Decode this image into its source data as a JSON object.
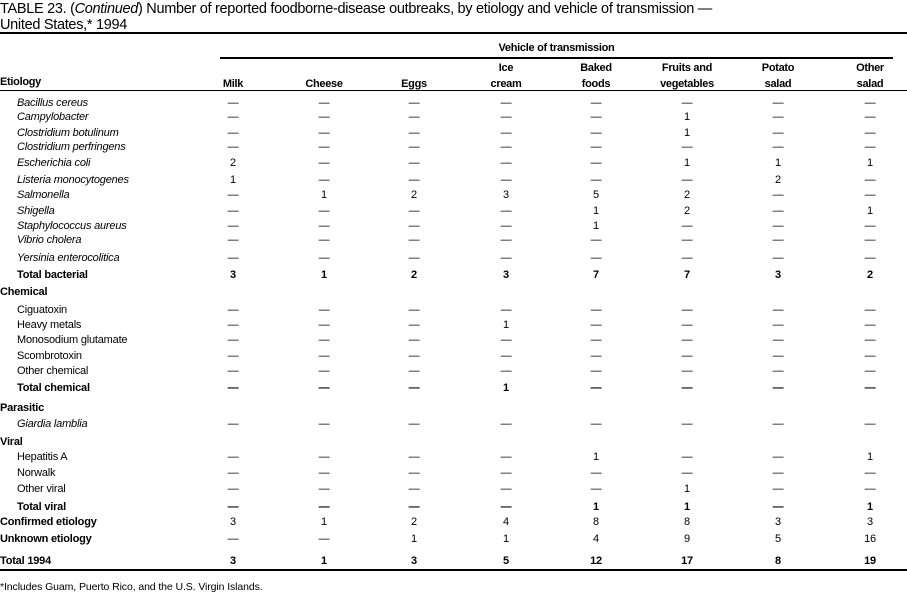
{
  "title": {
    "prefix": "TABLE 23. (",
    "continued": "Continued",
    "text": ") Number of reported foodborne-disease  outbreaks, by etiology and vehicle of transmission —",
    "line2": "United States,* 1994"
  },
  "header": {
    "etiology": "Etiology",
    "group": "Vehicle of transmission",
    "columns": [
      {
        "line1": "",
        "line2": "Milk"
      },
      {
        "line1": "",
        "line2": "Cheese"
      },
      {
        "line1": "",
        "line2": "Eggs"
      },
      {
        "line1": "Ice",
        "line2": "cream"
      },
      {
        "line1": "Baked",
        "line2": "foods"
      },
      {
        "line1": "Fruits and",
        "line2": "vegetables"
      },
      {
        "line1": "Potato",
        "line2": "salad"
      },
      {
        "line1": "Other",
        "line2": "salad"
      }
    ]
  },
  "rows": [
    {
      "type": "organism",
      "label": "Bacillus cereus",
      "values": [
        "—",
        "—",
        "—",
        "—",
        "—",
        "—",
        "—",
        "—"
      ]
    },
    {
      "type": "organism",
      "label": "Campylobacter",
      "values": [
        "—",
        "—",
        "—",
        "—",
        "—",
        "1",
        "—",
        "—"
      ]
    },
    {
      "type": "organism",
      "label": "Clostridium botulinum",
      "values": [
        "—",
        "—",
        "—",
        "—",
        "—",
        "1",
        "—",
        "—"
      ]
    },
    {
      "type": "organism",
      "label": "Clostridium perfringens",
      "values": [
        "—",
        "—",
        "—",
        "—",
        "—",
        "—",
        "—",
        "—"
      ]
    },
    {
      "type": "organism",
      "label": "Escherichia coli",
      "values": [
        "2",
        "—",
        "—",
        "—",
        "—",
        "1",
        "1",
        "1"
      ]
    },
    {
      "type": "organism",
      "label": "Listeria monocytogenes",
      "values": [
        "1",
        "—",
        "—",
        "—",
        "—",
        "—",
        "2",
        "—"
      ]
    },
    {
      "type": "organism",
      "label": "Salmonella",
      "values": [
        "—",
        "1",
        "2",
        "3",
        "5",
        "2",
        "—",
        "—"
      ]
    },
    {
      "type": "organism",
      "label": "Shigella",
      "values": [
        "—",
        "—",
        "—",
        "—",
        "1",
        "2",
        "—",
        "1"
      ]
    },
    {
      "type": "organism",
      "label": "Staphylococcus aureus",
      "values": [
        "—",
        "—",
        "—",
        "—",
        "1",
        "—",
        "—",
        "—"
      ]
    },
    {
      "type": "organism",
      "label": "Vibrio cholera",
      "values": [
        "—",
        "—",
        "—",
        "—",
        "—",
        "—",
        "—",
        "—"
      ]
    },
    {
      "type": "organism",
      "label": "Yersinia enterocolitica",
      "values": [
        "—",
        "—",
        "—",
        "—",
        "—",
        "—",
        "—",
        "—"
      ]
    },
    {
      "type": "subtotal",
      "label": "Total bacterial",
      "values": [
        "3",
        "1",
        "2",
        "3",
        "7",
        "7",
        "3",
        "2"
      ]
    },
    {
      "type": "category",
      "label": "Chemical",
      "values": []
    },
    {
      "type": "item",
      "label": "Ciguatoxin",
      "values": [
        "—",
        "—",
        "—",
        "—",
        "—",
        "—",
        "—",
        "—"
      ]
    },
    {
      "type": "item",
      "label": "Heavy metals",
      "values": [
        "—",
        "—",
        "—",
        "1",
        "—",
        "—",
        "—",
        "—"
      ]
    },
    {
      "type": "item",
      "label": "Monosodium glutamate",
      "values": [
        "—",
        "—",
        "—",
        "—",
        "—",
        "—",
        "—",
        "—"
      ]
    },
    {
      "type": "item",
      "label": "Scombrotoxin",
      "values": [
        "—",
        "—",
        "—",
        "—",
        "—",
        "—",
        "—",
        "—"
      ]
    },
    {
      "type": "item",
      "label": "Other chemical",
      "values": [
        "—",
        "—",
        "—",
        "—",
        "—",
        "—",
        "—",
        "—"
      ]
    },
    {
      "type": "subtotal",
      "label": "Total chemical",
      "values": [
        "—",
        "—",
        "—",
        "1",
        "—",
        "—",
        "—",
        "—"
      ]
    },
    {
      "type": "category",
      "label": "Parasitic",
      "values": []
    },
    {
      "type": "organism",
      "label": "Giardia lamblia",
      "values": [
        "—",
        "—",
        "—",
        "—",
        "—",
        "—",
        "—",
        "—"
      ]
    },
    {
      "type": "category",
      "label": "Viral",
      "values": []
    },
    {
      "type": "item",
      "label": "Hepatitis A",
      "values": [
        "—",
        "—",
        "—",
        "—",
        "1",
        "—",
        "—",
        "1"
      ]
    },
    {
      "type": "item",
      "label": "Norwalk",
      "values": [
        "—",
        "—",
        "—",
        "—",
        "—",
        "—",
        "—",
        "—"
      ]
    },
    {
      "type": "item",
      "label": "Other viral",
      "values": [
        "—",
        "—",
        "—",
        "—",
        "—",
        "1",
        "—",
        "—"
      ]
    },
    {
      "type": "subtotal",
      "label": "Total viral",
      "values": [
        "—",
        "—",
        "—",
        "—",
        "1",
        "1",
        "—",
        "1"
      ]
    },
    {
      "type": "summary",
      "label": "Confirmed etiology",
      "values": [
        "3",
        "1",
        "2",
        "4",
        "8",
        "8",
        "3",
        "3"
      ]
    },
    {
      "type": "summary",
      "label": "Unknown etiology",
      "values": [
        "—",
        "—",
        "1",
        "1",
        "4",
        "9",
        "5",
        "16"
      ]
    },
    {
      "type": "grandtotal",
      "label": "Total 1994",
      "values": [
        "3",
        "1",
        "3",
        "5",
        "12",
        "17",
        "8",
        "19"
      ]
    }
  ],
  "footnote": "*Includes Guam, Puerto Rico, and the U.S. Virgin Islands."
}
